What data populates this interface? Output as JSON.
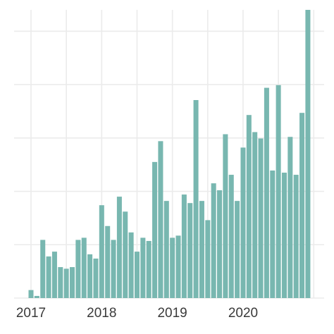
{
  "chart_data": {
    "type": "bar",
    "categories": [
      "2017",
      null,
      null,
      null,
      null,
      null,
      null,
      null,
      null,
      null,
      null,
      null,
      "2018",
      null,
      null,
      null,
      null,
      null,
      null,
      null,
      null,
      null,
      null,
      null,
      "2019",
      null,
      null,
      null,
      null,
      null,
      null,
      null,
      null,
      null,
      null,
      null,
      "2020",
      null,
      null,
      null,
      null,
      null,
      null,
      null,
      null,
      null,
      null,
      null
    ],
    "values": [
      0.15,
      0.04,
      1.09,
      0.78,
      0.87,
      0.58,
      0.55,
      0.58,
      1.09,
      1.13,
      0.82,
      0.74,
      1.74,
      1.35,
      1.09,
      1.9,
      1.62,
      1.23,
      0.87,
      1.13,
      1.07,
      2.55,
      2.94,
      1.82,
      1.13,
      1.17,
      1.94,
      1.78,
      3.71,
      1.82,
      1.46,
      2.15,
      2.02,
      3.07,
      2.31,
      1.82,
      2.82,
      3.43,
      3.11,
      2.99,
      3.94,
      2.39,
      3.99,
      2.35,
      3.02,
      2.31,
      3.47,
      5.4
    ],
    "color": "#78b7b0",
    "ylim": [
      0,
      5.4
    ],
    "yticks": [
      0,
      1,
      2,
      3,
      4,
      5
    ],
    "grid": true
  }
}
